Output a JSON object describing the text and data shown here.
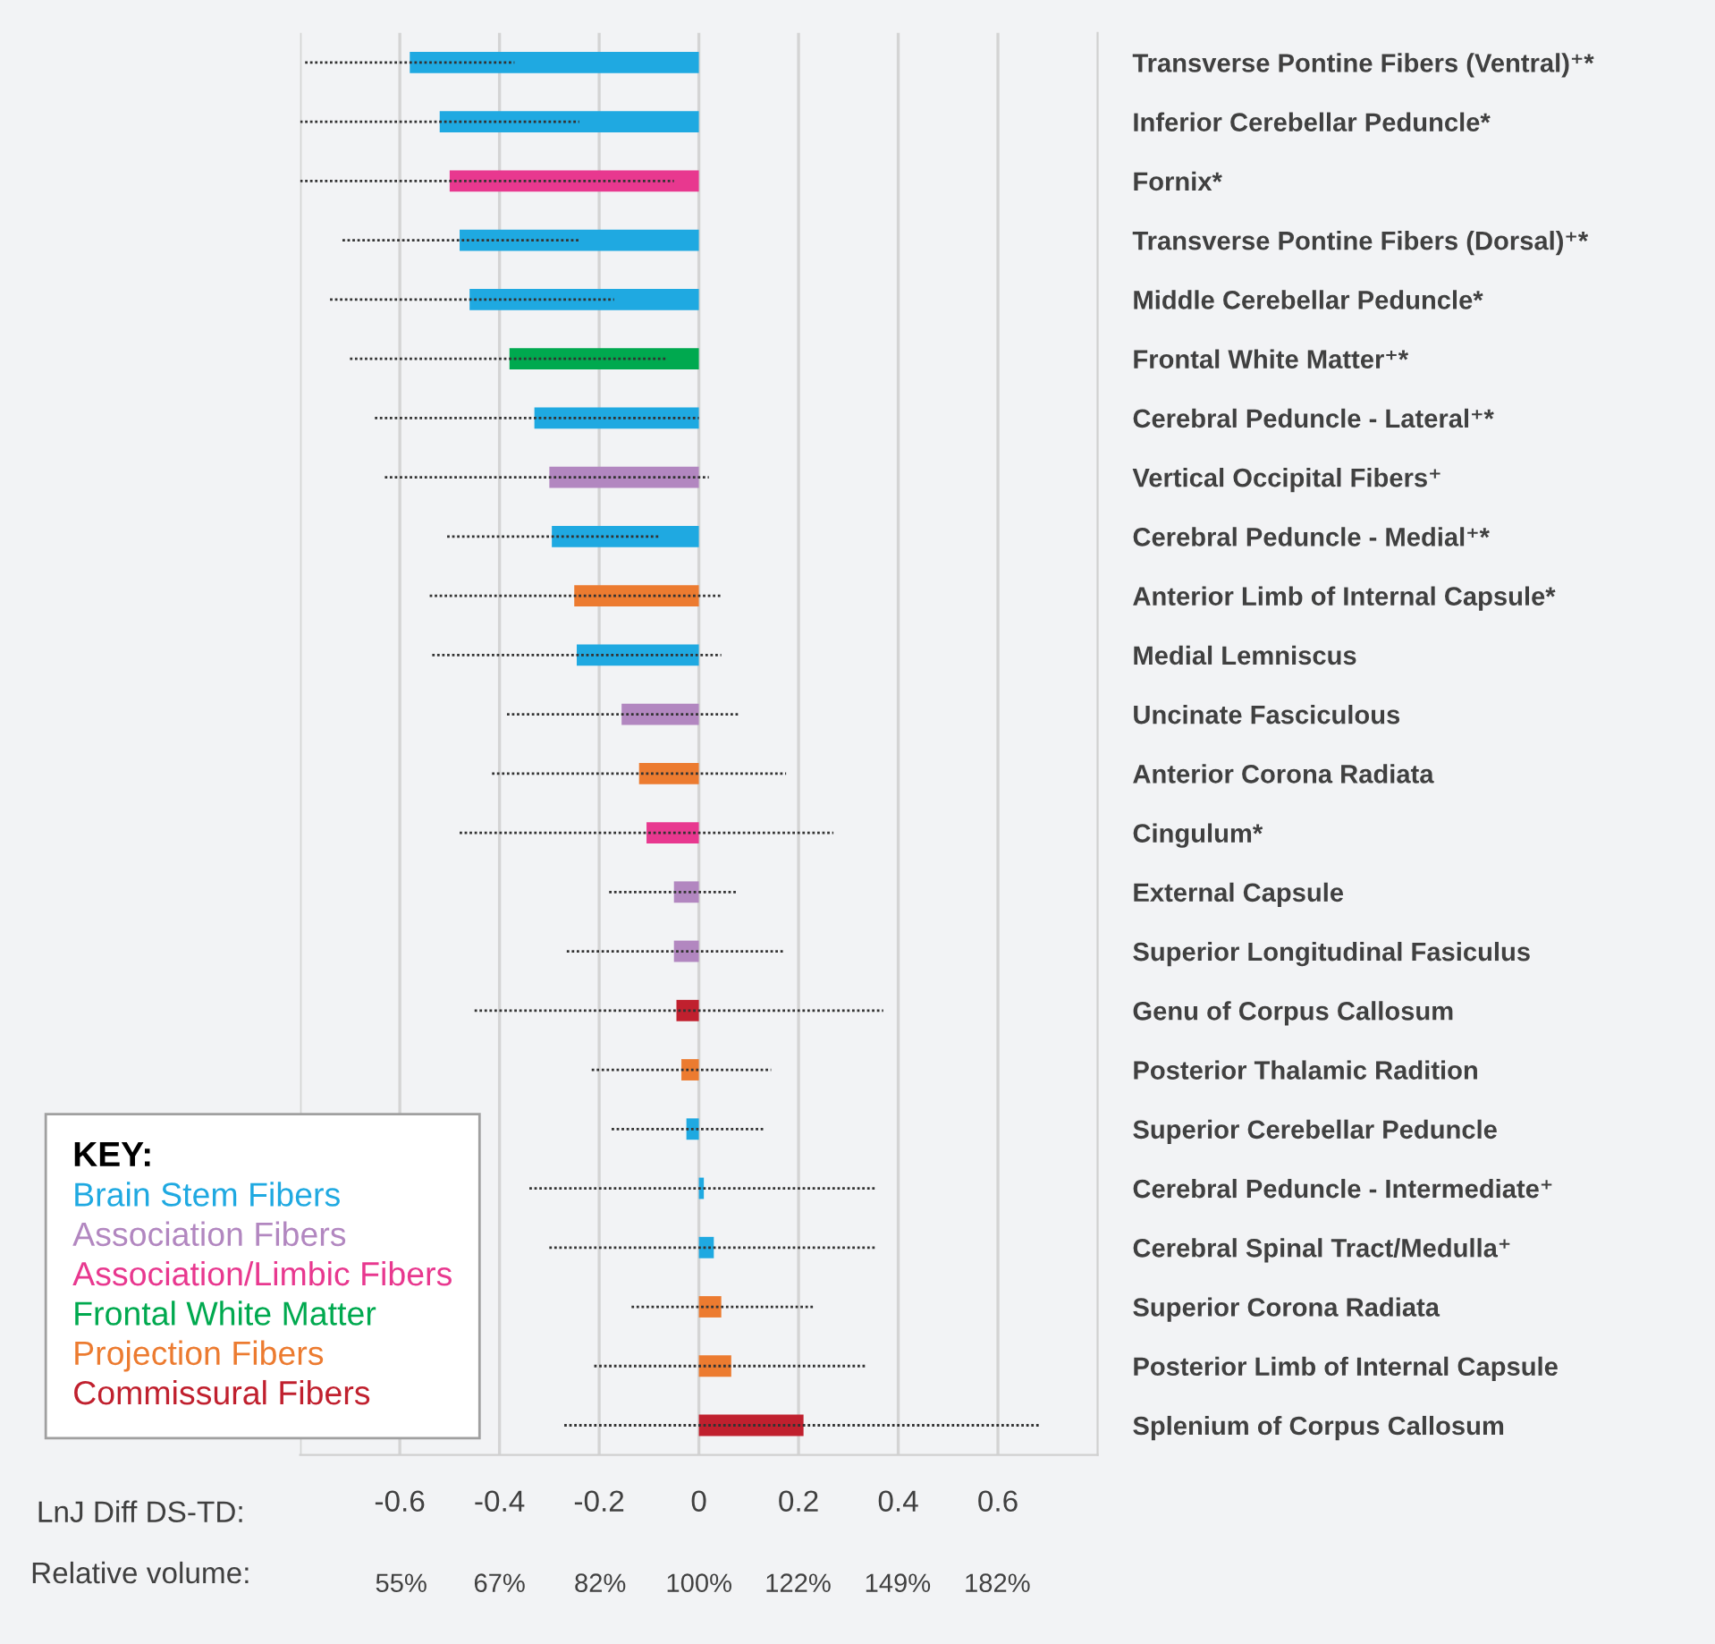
{
  "chart_data": {
    "type": "bar",
    "orientation": "horizontal",
    "categories": [
      "Transverse Pontine Fibers (Ventral)⁺*",
      "Inferior Cerebellar Peduncle*",
      "Fornix*",
      "Transverse Pontine Fibers (Dorsal)⁺*",
      "Middle Cerebellar Peduncle*",
      "Frontal White Matter⁺*",
      "Cerebral Peduncle - Lateral⁺*",
      "Vertical Occipital Fibers⁺",
      "Cerebral Peduncle - Medial⁺*",
      "Anterior Limb of Internal Capsule*",
      "Medial Lemniscus",
      "Uncinate Fasciculous",
      "Anterior Corona Radiata",
      "Cingulum*",
      "External Capsule",
      "Superior Longitudinal Fasiculus",
      "Genu of Corpus Callosum",
      "Posterior Thalamic Radition",
      "Superior Cerebellar Peduncle",
      "Cerebral Peduncle - Intermediate⁺",
      "Cerebral Spinal Tract/Medulla⁺",
      "Superior Corona Radiata",
      "Posterior Limb of Internal Capsule",
      "Splenium of Corpus Callosum"
    ],
    "series": [
      {
        "name": "Brain Stem Fibers",
        "color": "#1fa9e1",
        "values": [
          -0.58,
          -0.52,
          null,
          -0.48,
          -0.46,
          null,
          -0.33,
          null,
          -0.295,
          null,
          -0.245,
          null,
          null,
          null,
          null,
          null,
          null,
          null,
          -0.025,
          0.01,
          0.03,
          null,
          null,
          null
        ],
        "errors": [
          [
            -0.79,
            -0.37
          ],
          [
            -0.8,
            -0.24
          ],
          null,
          [
            -0.715,
            -0.24
          ],
          [
            -0.74,
            -0.17
          ],
          null,
          [
            -0.65,
            0.0
          ],
          null,
          [
            -0.505,
            -0.08
          ],
          null,
          [
            -0.535,
            0.045
          ],
          null,
          null,
          null,
          null,
          null,
          null,
          null,
          [
            -0.175,
            0.13
          ],
          [
            -0.34,
            0.355
          ],
          [
            -0.3,
            0.355
          ],
          null,
          null,
          null
        ]
      },
      {
        "name": "Association Fibers",
        "color": "#b287c0",
        "values": [
          null,
          null,
          null,
          null,
          null,
          null,
          null,
          -0.3,
          null,
          null,
          null,
          -0.155,
          null,
          null,
          -0.05,
          -0.05,
          null,
          null,
          null,
          null,
          null,
          null,
          null,
          null
        ],
        "errors": [
          null,
          null,
          null,
          null,
          null,
          null,
          null,
          [
            -0.63,
            0.02
          ],
          null,
          null,
          null,
          [
            -0.385,
            0.08
          ],
          null,
          null,
          [
            -0.18,
            0.075
          ],
          [
            -0.265,
            0.17
          ],
          null,
          null,
          null,
          null,
          null,
          null,
          null,
          null
        ]
      },
      {
        "name": "Association/Limbic Fibers",
        "color": "#e8388f",
        "values": [
          null,
          null,
          -0.5,
          null,
          null,
          null,
          null,
          null,
          null,
          null,
          null,
          null,
          null,
          -0.105,
          null,
          null,
          null,
          null,
          null,
          null,
          null,
          null,
          null,
          null
        ],
        "errors": [
          null,
          null,
          [
            -0.8,
            -0.05
          ],
          null,
          null,
          null,
          null,
          null,
          null,
          null,
          null,
          null,
          null,
          [
            -0.48,
            0.27
          ],
          null,
          null,
          null,
          null,
          null,
          null,
          null,
          null,
          null,
          null
        ]
      },
      {
        "name": "Frontal White Matter",
        "color": "#00a94f",
        "values": [
          null,
          null,
          null,
          null,
          null,
          -0.38,
          null,
          null,
          null,
          null,
          null,
          null,
          null,
          null,
          null,
          null,
          null,
          null,
          null,
          null,
          null,
          null,
          null,
          null
        ],
        "errors": [
          null,
          null,
          null,
          null,
          null,
          [
            -0.7,
            -0.065
          ],
          null,
          null,
          null,
          null,
          null,
          null,
          null,
          null,
          null,
          null,
          null,
          null,
          null,
          null,
          null,
          null,
          null,
          null
        ]
      },
      {
        "name": "Projection Fibers",
        "color": "#ec7b30",
        "values": [
          null,
          null,
          null,
          null,
          null,
          null,
          null,
          null,
          null,
          -0.25,
          null,
          null,
          -0.12,
          null,
          null,
          null,
          null,
          -0.035,
          null,
          null,
          null,
          0.045,
          0.065,
          null
        ],
        "errors": [
          null,
          null,
          null,
          null,
          null,
          null,
          null,
          null,
          null,
          [
            -0.54,
            0.045
          ],
          null,
          null,
          [
            -0.415,
            0.175
          ],
          null,
          null,
          null,
          null,
          [
            -0.215,
            0.145
          ],
          null,
          null,
          null,
          [
            -0.135,
            0.23
          ],
          [
            -0.21,
            0.335
          ],
          null
        ]
      },
      {
        "name": "Commissural Fibers",
        "color": "#c0202e",
        "values": [
          null,
          null,
          null,
          null,
          null,
          null,
          null,
          null,
          null,
          null,
          null,
          null,
          null,
          null,
          null,
          null,
          -0.045,
          null,
          null,
          null,
          null,
          null,
          null,
          0.21
        ],
        "errors": [
          null,
          null,
          null,
          null,
          null,
          null,
          null,
          null,
          null,
          null,
          null,
          null,
          null,
          null,
          null,
          null,
          [
            -0.45,
            0.37
          ],
          null,
          null,
          null,
          null,
          null,
          null,
          [
            -0.27,
            0.685
          ]
        ]
      }
    ],
    "xlim": [
      -0.8,
      0.8
    ],
    "xticks": [
      {
        "value": -0.8,
        "label": null
      },
      -0.6,
      -0.4,
      -0.2,
      0,
      0.2,
      0.4,
      0.6
    ],
    "x2lim": [
      44.9,
      222.6
    ],
    "x2ticks": [
      {
        "value": 55,
        "label": "55%"
      },
      {
        "value": 67,
        "label": "67%"
      },
      {
        "value": 82,
        "label": "82%"
      },
      {
        "value": 100,
        "label": "100%"
      },
      {
        "value": 122,
        "label": "122%"
      },
      {
        "value": 149,
        "label": "149%"
      },
      {
        "value": 182,
        "label": "182%"
      }
    ],
    "log": "x2",
    "xlabel": "LnJ Diff DS-TD:",
    "x2label": "Relative volume:",
    "legend_title": "KEY:",
    "legend": "bottom left",
    "grid": "x"
  }
}
